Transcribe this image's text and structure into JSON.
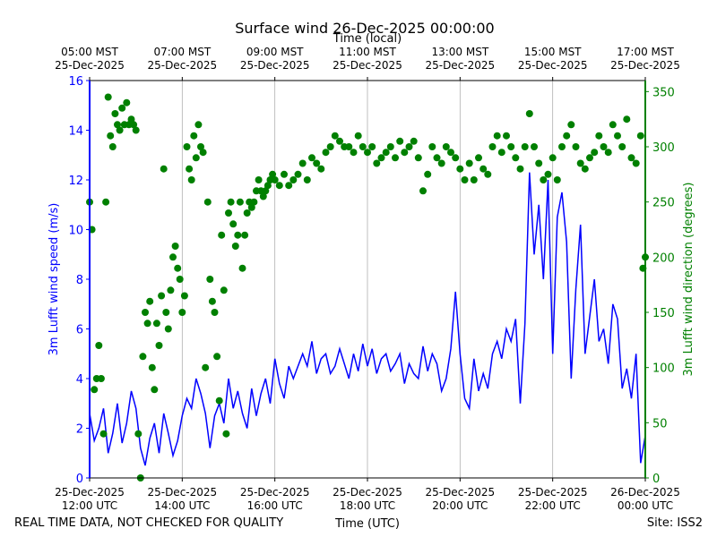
{
  "chart_data": {
    "type": "line",
    "title": "Surface wind 26-Dec-2025 00:00:00",
    "xlabel": "Time (UTC)",
    "xlabel_top": "Time (local)",
    "ylabel_left": "3m Lufft wind speed (m/s)",
    "ylabel_right": "3m Lufft wind direction (degrees)",
    "ylim_left": [
      0,
      16
    ],
    "ylim_right": [
      0,
      360
    ],
    "xlim_hours": [
      12,
      24
    ],
    "grid": "vertical",
    "bottom_ticks": [
      {
        "hour": 12,
        "line1": "25-Dec-2025",
        "line2": "12:00 UTC"
      },
      {
        "hour": 14,
        "line1": "25-Dec-2025",
        "line2": "14:00 UTC"
      },
      {
        "hour": 16,
        "line1": "25-Dec-2025",
        "line2": "16:00 UTC"
      },
      {
        "hour": 18,
        "line1": "25-Dec-2025",
        "line2": "18:00 UTC"
      },
      {
        "hour": 20,
        "line1": "25-Dec-2025",
        "line2": "20:00 UTC"
      },
      {
        "hour": 22,
        "line1": "25-Dec-2025",
        "line2": "22:00 UTC"
      },
      {
        "hour": 24,
        "line1": "26-Dec-2025",
        "line2": "00:00 UTC"
      }
    ],
    "top_ticks": [
      {
        "hour": 12,
        "line1": "05:00 MST",
        "line2": "25-Dec-2025"
      },
      {
        "hour": 14,
        "line1": "07:00 MST",
        "line2": "25-Dec-2025"
      },
      {
        "hour": 16,
        "line1": "09:00 MST",
        "line2": "25-Dec-2025"
      },
      {
        "hour": 18,
        "line1": "11:00 MST",
        "line2": "25-Dec-2025"
      },
      {
        "hour": 20,
        "line1": "13:00 MST",
        "line2": "25-Dec-2025"
      },
      {
        "hour": 22,
        "line1": "15:00 MST",
        "line2": "25-Dec-2025"
      },
      {
        "hour": 24,
        "line1": "17:00 MST",
        "line2": "25-Dec-2025"
      }
    ],
    "left_ticks": [
      0,
      2,
      4,
      6,
      8,
      10,
      12,
      14,
      16
    ],
    "right_ticks": [
      0,
      50,
      100,
      150,
      200,
      250,
      300,
      350
    ],
    "series": [
      {
        "name": "3m Lufft wind speed (m/s)",
        "axis": "left",
        "style": "line",
        "color": "#0000ff",
        "x": [
          12.0,
          12.1,
          12.2,
          12.3,
          12.4,
          12.5,
          12.6,
          12.7,
          12.8,
          12.9,
          13.0,
          13.1,
          13.2,
          13.3,
          13.4,
          13.5,
          13.6,
          13.7,
          13.8,
          13.9,
          14.0,
          14.1,
          14.2,
          14.3,
          14.4,
          14.5,
          14.6,
          14.7,
          14.8,
          14.9,
          15.0,
          15.1,
          15.2,
          15.3,
          15.4,
          15.5,
          15.6,
          15.7,
          15.8,
          15.9,
          16.0,
          16.1,
          16.2,
          16.3,
          16.4,
          16.5,
          16.6,
          16.7,
          16.8,
          16.9,
          17.0,
          17.1,
          17.2,
          17.3,
          17.4,
          17.5,
          17.6,
          17.7,
          17.8,
          17.9,
          18.0,
          18.1,
          18.2,
          18.3,
          18.4,
          18.5,
          18.6,
          18.7,
          18.8,
          18.9,
          19.0,
          19.1,
          19.2,
          19.3,
          19.4,
          19.5,
          19.6,
          19.7,
          19.8,
          19.9,
          20.0,
          20.1,
          20.2,
          20.3,
          20.4,
          20.5,
          20.6,
          20.7,
          20.8,
          20.9,
          21.0,
          21.1,
          21.2,
          21.3,
          21.4,
          21.5,
          21.6,
          21.7,
          21.8,
          21.9,
          22.0,
          22.1,
          22.2,
          22.3,
          22.4,
          22.5,
          22.6,
          22.7,
          22.8,
          22.9,
          23.0,
          23.1,
          23.2,
          23.3,
          23.4,
          23.5,
          23.6,
          23.7,
          23.8,
          23.9,
          24.0
        ],
        "values": [
          2.6,
          1.5,
          2.0,
          2.8,
          1.0,
          1.8,
          3.0,
          1.4,
          2.2,
          3.5,
          2.8,
          1.2,
          0.5,
          1.6,
          2.2,
          1.0,
          2.6,
          1.8,
          0.9,
          1.5,
          2.5,
          3.2,
          2.8,
          4.0,
          3.4,
          2.6,
          1.2,
          2.5,
          3.0,
          2.2,
          4.0,
          2.8,
          3.5,
          2.6,
          2.0,
          3.6,
          2.5,
          3.4,
          4.0,
          3.0,
          4.8,
          3.8,
          3.2,
          4.5,
          4.0,
          4.5,
          5.0,
          4.5,
          5.5,
          4.2,
          4.8,
          5.0,
          4.2,
          4.5,
          5.2,
          4.6,
          4.0,
          5.0,
          4.3,
          5.4,
          4.5,
          5.2,
          4.2,
          4.8,
          5.0,
          4.3,
          4.6,
          5.0,
          3.8,
          4.6,
          4.2,
          4.0,
          5.3,
          4.3,
          5.0,
          4.6,
          3.5,
          4.0,
          5.2,
          7.5,
          5.0,
          3.2,
          2.8,
          4.8,
          3.5,
          4.2,
          3.6,
          5.0,
          5.5,
          4.8,
          6.0,
          5.5,
          6.4,
          3.0,
          6.2,
          12.3,
          9.0,
          11.0,
          8.0,
          12.0,
          5.0,
          10.5,
          11.5,
          9.5,
          4.0,
          7.6,
          10.2,
          5.0,
          6.5,
          8.0,
          5.5,
          6.0,
          4.6,
          7.0,
          6.4,
          3.6,
          4.4,
          3.2,
          5.0,
          0.6,
          1.7
        ]
      },
      {
        "name": "3m Lufft wind direction (degrees)",
        "axis": "right",
        "style": "dots",
        "color": "#008000",
        "x": [
          12.0,
          12.05,
          12.1,
          12.15,
          12.2,
          12.25,
          12.3,
          12.35,
          12.4,
          12.45,
          12.5,
          12.55,
          12.6,
          12.65,
          12.7,
          12.75,
          12.8,
          12.85,
          12.9,
          12.95,
          13.0,
          13.05,
          13.1,
          13.15,
          13.2,
          13.25,
          13.3,
          13.35,
          13.4,
          13.45,
          13.5,
          13.55,
          13.6,
          13.65,
          13.7,
          13.75,
          13.8,
          13.85,
          13.9,
          13.95,
          14.0,
          14.05,
          14.1,
          14.15,
          14.2,
          14.25,
          14.3,
          14.35,
          14.4,
          14.45,
          14.5,
          14.55,
          14.6,
          14.65,
          14.7,
          14.75,
          14.8,
          14.85,
          14.9,
          14.95,
          15.0,
          15.05,
          15.1,
          15.15,
          15.2,
          15.25,
          15.3,
          15.35,
          15.4,
          15.45,
          15.5,
          15.55,
          15.6,
          15.65,
          15.7,
          15.75,
          15.8,
          15.85,
          15.9,
          15.95,
          16.0,
          16.1,
          16.2,
          16.3,
          16.4,
          16.5,
          16.6,
          16.7,
          16.8,
          16.9,
          17.0,
          17.1,
          17.2,
          17.3,
          17.4,
          17.5,
          17.6,
          17.7,
          17.8,
          17.9,
          18.0,
          18.1,
          18.2,
          18.3,
          18.4,
          18.5,
          18.6,
          18.7,
          18.8,
          18.9,
          19.0,
          19.1,
          19.2,
          19.3,
          19.4,
          19.5,
          19.6,
          19.7,
          19.8,
          19.9,
          20.0,
          20.1,
          20.2,
          20.3,
          20.4,
          20.5,
          20.6,
          20.7,
          20.8,
          20.9,
          21.0,
          21.1,
          21.2,
          21.3,
          21.4,
          21.5,
          21.6,
          21.7,
          21.8,
          21.9,
          22.0,
          22.1,
          22.2,
          22.3,
          22.4,
          22.5,
          22.6,
          22.7,
          22.8,
          22.9,
          23.0,
          23.1,
          23.2,
          23.3,
          23.4,
          23.5,
          23.6,
          23.7,
          23.8,
          23.9,
          23.95,
          24.0
        ],
        "values": [
          250,
          225,
          80,
          90,
          120,
          90,
          40,
          250,
          345,
          310,
          300,
          330,
          320,
          315,
          335,
          320,
          340,
          320,
          325,
          320,
          315,
          40,
          0,
          110,
          150,
          140,
          160,
          100,
          80,
          140,
          120,
          165,
          280,
          150,
          135,
          170,
          200,
          210,
          190,
          180,
          150,
          165,
          300,
          280,
          270,
          310,
          290,
          320,
          300,
          295,
          100,
          250,
          180,
          160,
          150,
          110,
          70,
          220,
          170,
          40,
          240,
          250,
          230,
          210,
          220,
          250,
          190,
          220,
          240,
          250,
          245,
          250,
          260,
          270,
          260,
          255,
          260,
          265,
          270,
          275,
          270,
          265,
          275,
          265,
          270,
          275,
          285,
          270,
          290,
          285,
          280,
          295,
          300,
          310,
          305,
          300,
          300,
          295,
          310,
          300,
          295,
          300,
          285,
          290,
          295,
          300,
          290,
          305,
          295,
          300,
          305,
          290,
          260,
          275,
          300,
          290,
          285,
          300,
          295,
          290,
          280,
          270,
          285,
          270,
          290,
          280,
          275,
          300,
          310,
          295,
          310,
          300,
          290,
          280,
          300,
          330,
          300,
          285,
          270,
          275,
          290,
          270,
          300,
          310,
          320,
          300,
          285,
          280,
          290,
          295,
          310,
          300,
          295,
          320,
          310,
          300,
          325,
          290,
          285,
          310,
          190,
          200
        ]
      }
    ]
  },
  "footer": {
    "left": "REAL TIME DATA, NOT CHECKED FOR QUALITY",
    "right": "Site: ISS2"
  }
}
